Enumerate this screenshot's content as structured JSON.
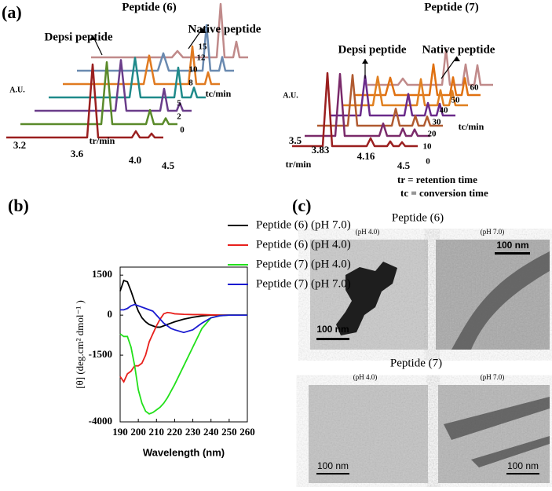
{
  "panel_a": {
    "label": "(a)",
    "left": {
      "title": "Peptide  (6)",
      "depsi": "Depsi peptide",
      "native": "Native peptide",
      "y_label": "A.U.",
      "x_label": "tr/min",
      "z_label": "tc/min",
      "x_ticks": [
        "3.2",
        "3.6",
        "4.0",
        "4.5"
      ],
      "z_ticks": [
        "0",
        "2",
        "5",
        "8",
        "10",
        "12",
        "15"
      ]
    },
    "right": {
      "title": "Peptide  (7)",
      "depsi": "Depsi peptide",
      "native": "Native peptide",
      "y_label": "A.U.",
      "x_label": "tr/min",
      "z_label": "tc/min",
      "x_ticks": [
        "3.5",
        "3.83",
        "4.16",
        "4.5"
      ],
      "z_ticks": [
        "0",
        "10",
        "20",
        "30",
        "40",
        "50",
        "60"
      ]
    },
    "notes": [
      "tr = retention time",
      "tc = conversion time"
    ]
  },
  "chart_data": {
    "type": "line",
    "label": "(b)",
    "x_label": "Wavelength (nm)",
    "y_label": "[θ] (deg.cm² dmol⁻¹ )",
    "x": [
      190,
      192,
      194,
      196,
      198,
      200,
      202,
      204,
      206,
      208,
      210,
      212,
      214,
      216,
      218,
      220,
      225,
      230,
      235,
      240,
      245,
      250,
      255,
      260
    ],
    "xlim": [
      190,
      260
    ],
    "xticks": [
      190,
      200,
      210,
      220,
      230,
      240,
      250,
      260
    ],
    "ylim": [
      -4000,
      1800
    ],
    "yticks": [
      -4000,
      -1500,
      0,
      1500
    ],
    "series": [
      {
        "name": "Peptide (6) (pH 7.0)",
        "color": "#000000",
        "values": [
          900,
          1300,
          1250,
          900,
          500,
          150,
          -100,
          -250,
          -350,
          -400,
          -450,
          -450,
          -400,
          -350,
          -300,
          -250,
          -150,
          -80,
          -30,
          0,
          0,
          0,
          0,
          0
        ]
      },
      {
        "name": "Peptide (6) (pH 4.0)",
        "color": "#e8201c",
        "values": [
          -2300,
          -2500,
          -2200,
          -2100,
          -1900,
          -1900,
          -1800,
          -1500,
          -1000,
          -700,
          -400,
          -150,
          50,
          100,
          80,
          50,
          30,
          20,
          20,
          10,
          0,
          0,
          0,
          0
        ]
      },
      {
        "name": "Peptide (7) (pH 4.0)",
        "color": "#22e01a",
        "values": [
          -700,
          -800,
          -800,
          -1200,
          -1900,
          -2800,
          -3300,
          -3600,
          -3700,
          -3650,
          -3550,
          -3450,
          -3300,
          -3100,
          -2850,
          -2600,
          -1900,
          -1200,
          -500,
          -100,
          -20,
          0,
          0,
          0
        ]
      },
      {
        "name": "Peptide (7) (pH 7.0)",
        "color": "#1a1ad0",
        "values": [
          200,
          200,
          250,
          350,
          400,
          350,
          300,
          250,
          200,
          150,
          0,
          -150,
          -300,
          -400,
          -500,
          -550,
          -650,
          -550,
          -300,
          -100,
          -20,
          0,
          0,
          0
        ]
      }
    ]
  },
  "panel_c": {
    "label": "(c)",
    "peptide6": {
      "title": "Peptide  (6)",
      "ph4": "(pH 4.0)",
      "ph7": "(pH 7.0)",
      "scale4": "100 nm",
      "scale7": "100 nm"
    },
    "peptide7": {
      "title": "Peptide (7)",
      "ph4": "(pH 4.0)",
      "ph7": "(pH 7.0)",
      "scale4": "100 nm",
      "scale7": "100 nm"
    }
  }
}
